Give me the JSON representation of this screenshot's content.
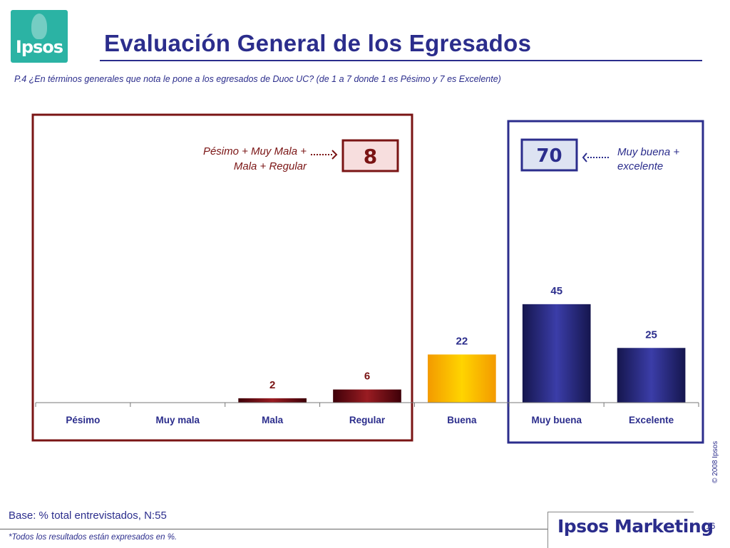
{
  "header": {
    "logo_text": "Ipsos",
    "title": "Evaluación General de los Egresados",
    "question": "P.4 ¿En términos generales que nota le pone a los egresados de Duoc UC? (de 1 a 7 donde 1 es Pésimo y 7 es Excelente)"
  },
  "chart_data": {
    "type": "bar",
    "categories": [
      "Pésimo",
      "Muy mala",
      "Mala",
      "Regular",
      "Buena",
      "Muy buena",
      "Excelente"
    ],
    "values": [
      null,
      null,
      2,
      6,
      22,
      45,
      25
    ],
    "title": "",
    "xlabel": "",
    "ylabel": "",
    "ylim": [
      0,
      100
    ],
    "grid": false,
    "legend": "none",
    "colors": [
      "#6b0d18",
      "#6b0d18",
      "#6b0d18",
      "#6b0d18",
      "#f5a400",
      "#22236b",
      "#22236b"
    ]
  },
  "summary": {
    "negative": {
      "label_line1": "Pésimo + Muy Mala +",
      "label_line2": "Mala + Regular",
      "value": "8",
      "border_color": "#7a1414"
    },
    "positive": {
      "label_line1": "Muy buena +",
      "label_line2": "excelente",
      "value": "70",
      "border_color": "#2b2d8c"
    }
  },
  "footer": {
    "copyright": "© 2008 Ipsos",
    "base": "Base: % total entrevistados, N:55",
    "note": "*Todos los resultados están expresados en %.",
    "brand": "Ipsos Marketing",
    "page_number": "16"
  }
}
